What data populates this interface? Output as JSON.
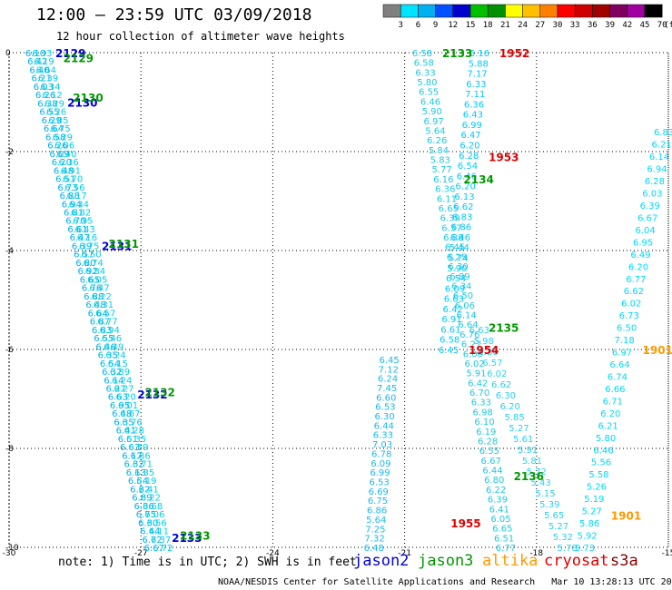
{
  "header": {
    "title": "12:00 — 23:59 UTC 03/09/2018",
    "subtitle": "12 hour collection of altimeter wave heights"
  },
  "colorbar": {
    "unit_label": "(ft)",
    "ticks": [
      "3",
      "6",
      "9",
      "12",
      "15",
      "18",
      "21",
      "24",
      "27",
      "30",
      "33",
      "36",
      "39",
      "42",
      "45",
      "70"
    ],
    "colors": [
      "#808080",
      "#00e5ff",
      "#00b0f0",
      "#0050ff",
      "#0000cc",
      "#00c000",
      "#009000",
      "#ffff00",
      "#ffc000",
      "#ff8000",
      "#ff0000",
      "#d00000",
      "#a00000",
      "#800060",
      "#a000a0",
      "#000000"
    ]
  },
  "chart_data": {
    "type": "scatter",
    "xlim": [
      -30,
      -15
    ],
    "ylim": [
      -10,
      0
    ],
    "xticks": [
      "-30",
      "-27",
      "-24",
      "-21",
      "-18",
      "-15"
    ],
    "yticks": [
      "0",
      "-2",
      "-4",
      "-6",
      "-8",
      "-10"
    ],
    "tracks": [
      {
        "satellite": "jason2",
        "color": "#00b0f0",
        "x0": -29.4,
        "y0": 0,
        "x1": -26.7,
        "y1": -10,
        "values": [
          "6.10",
          "6.42",
          "6.40",
          "6.21",
          "6.03",
          "6.26",
          "6.38",
          "6.55",
          "6.29",
          "6.64",
          "6.58",
          "6.26",
          "6.09",
          "6.20",
          "6.48",
          "6.51",
          "6.73",
          "6.88",
          "6.94",
          "6.81",
          "6.70",
          "6.61",
          "6.47",
          "6.39",
          "6.57",
          "6.80",
          "6.92",
          "6.65",
          "6.76",
          "6.88",
          "6.48",
          "6.64",
          "6.87",
          "6.83",
          "6.55",
          "6.46",
          "6.35",
          "6.54",
          "6.32",
          "6.14",
          "6.27",
          "6.63",
          "6.95",
          "6.48",
          "6.35",
          "6.41",
          "6.51",
          "6.63",
          "6.17",
          "6.32",
          "6.13",
          "6.54",
          "6.22",
          "6.89",
          "6.36",
          "6.75",
          "6.30",
          "6.44",
          "6.72",
          "6.67"
        ],
        "labels": [
          {
            "text": "2129",
            "y": 0.0
          },
          {
            "text": "2130",
            "y": -1.0
          },
          {
            "text": "2131",
            "y": -3.9
          },
          {
            "text": "2132",
            "y": -6.9
          },
          {
            "text": "2133",
            "y": -9.8
          }
        ]
      },
      {
        "satellite": "jason3",
        "color": "#00cfe8",
        "x0": -29.25,
        "y0": 0,
        "x1": -26.5,
        "y1": -10,
        "values": [
          "6.33",
          "6.19",
          "6.64",
          "6.39",
          "6.34",
          "6.12",
          "6.29",
          "6.26",
          "6.85",
          "6.75",
          "6.29",
          "6.06",
          "6.40",
          "6.36",
          "6.91",
          "6.70",
          "6.56",
          "6.17",
          "6.34",
          "6.82",
          "6.95",
          "6.43",
          "6.16",
          "6.75",
          "6.50",
          "6.74",
          "6.84",
          "6.05",
          "6.47",
          "6.22",
          "6.31",
          "6.57",
          "6.77",
          "6.94",
          "6.46",
          "6.49",
          "6.24",
          "6.15",
          "6.89",
          "6.24",
          "6.27",
          "6.20",
          "6.01",
          "6.67",
          "6.76",
          "6.28",
          "6.35",
          "6.59",
          "6.86",
          "6.71",
          "6.35",
          "6.19",
          "6.41",
          "6.22",
          "6.68",
          "6.06",
          "6.56",
          "6.11",
          "6.37",
          "6.72"
        ],
        "labels": [
          {
            "text": "2129",
            "y": -0.1
          },
          {
            "text": "2130",
            "y": -0.9
          },
          {
            "text": "2131",
            "y": -3.85
          },
          {
            "text": "2132",
            "y": -6.85
          },
          {
            "text": "2133",
            "y": -9.75
          }
        ]
      },
      {
        "satellite": "jason3",
        "color": "#20c8e0",
        "x0": -20.6,
        "y0": 0,
        "x1": -18.7,
        "y1": -10,
        "values": [
          "6.58",
          "6.58",
          "6.33",
          "5.80",
          "6.55",
          "6.46",
          "5.90",
          "6.97",
          "5.64",
          "6.26",
          "5.84",
          "5.83",
          "5.77",
          "6.16",
          "6.36",
          "6.11",
          "6.65",
          "6.39",
          "6.57",
          "6.88",
          "6.45",
          "6.25",
          "6.30",
          "6.89",
          "6.34",
          "6.50",
          "6.06",
          "6.14",
          "6.64",
          "6.76",
          "6.27",
          "6.08",
          "6.02",
          "5.91",
          "6.42",
          "6.70",
          "6.33",
          "6.98",
          "6.10",
          "6.19",
          "6.28",
          "6.55",
          "6.67",
          "6.44",
          "6.80",
          "6.22",
          "6.39",
          "6.41",
          "6.05",
          "6.65",
          "6.51",
          "6.77"
        ],
        "labels": [
          {
            "text": "2133",
            "y": 0.0
          },
          {
            "text": "2134",
            "y": -2.55
          },
          {
            "text": "2135",
            "y": -5.55
          },
          {
            "text": "2136",
            "y": -8.55
          }
        ]
      },
      {
        "satellite": "cryosat",
        "color": "#1ab8f0",
        "x0": -21.35,
        "y0": -6.2,
        "x1": -21.7,
        "y1": -10,
        "values": [
          "6.45",
          "7.12",
          "6.24",
          "7.45",
          "6.60",
          "6.53",
          "6.30",
          "6.44",
          "6.33",
          "7.03",
          "6.78",
          "6.09",
          "6.99",
          "6.53",
          "6.69",
          "6.75",
          "6.86",
          "5.64",
          "7.25",
          "7.32",
          "6.48"
        ],
        "labels": []
      },
      {
        "satellite": "cryosat",
        "color": "#00c8ff",
        "x0": -19.3,
        "y0": 0,
        "x1": -20.0,
        "y1": -6.0,
        "values": [
          "6.16",
          "5.88",
          "7.17",
          "6.33",
          "7.11",
          "6.36",
          "6.43",
          "6.99",
          "6.47",
          "6.20",
          "6.28",
          "6.54",
          "6.46",
          "6.20",
          "6.13",
          "6.62",
          "6.83",
          "6.86",
          "6.46",
          "5.44",
          "5.74",
          "5.90",
          "6.54",
          "6.09",
          "6.63",
          "6.42",
          "6.91",
          "6.61",
          "6.58",
          "6.45"
        ],
        "labels": [
          {
            "text": "1952",
            "y": 0.0
          },
          {
            "text": "1953",
            "y": -2.1
          },
          {
            "text": "1954",
            "y": -6.0
          },
          {
            "text": "1955",
            "y": -9.5
          }
        ]
      },
      {
        "satellite": "altika",
        "color": "#2ad0f0",
        "x0": -19.3,
        "y0": -5.6,
        "x1": -17.3,
        "y1": -10,
        "values": [
          "6.63",
          "5.98",
          "6.30",
          "6.57",
          "6.02",
          "6.62",
          "6.30",
          "6.20",
          "5.85",
          "5.27",
          "5.61",
          "5.91",
          "5.81",
          "5.72",
          "5.43",
          "5.15",
          "5.39",
          "5.65",
          "5.27",
          "5.32",
          "5.78"
        ],
        "labels": []
      },
      {
        "satellite": "altika",
        "color": "#00d8ff",
        "x0": -15.1,
        "y0": -1.6,
        "x1": -16.9,
        "y1": -10,
        "values": [
          "6.83",
          "6.21",
          "6.14",
          "6.94",
          "6.28",
          "6.03",
          "6.39",
          "6.67",
          "6.04",
          "6.95",
          "6.49",
          "6.20",
          "6.77",
          "6.62",
          "6.02",
          "6.73",
          "6.50",
          "7.18",
          "6.97",
          "6.64",
          "6.74",
          "6.66",
          "6.71",
          "6.20",
          "6.21",
          "5.80",
          "6.46",
          "5.56",
          "5.58",
          "5.26",
          "5.19",
          "5.27",
          "5.86",
          "5.92",
          "5.73"
        ],
        "labels": [
          {
            "text": "1901",
            "y": -6.0
          },
          {
            "text": "1901",
            "y": -9.35
          }
        ]
      }
    ]
  },
  "footer": {
    "note": "note: 1) Time is in UTC; 2) SWH is in feet",
    "satellites": [
      {
        "name": "jason2",
        "color": "#0000dd"
      },
      {
        "name": "jason3",
        "color": "#009900"
      },
      {
        "name": "altika",
        "color": "#ff9900"
      },
      {
        "name": "cryosat",
        "color": "#dd0000"
      },
      {
        "name": "s3a",
        "color": "#880000"
      }
    ],
    "credit": "NOAA/NESDIS Center for Satellite Applications and Research   Mar 10 13:28:13 UTC 2018"
  }
}
